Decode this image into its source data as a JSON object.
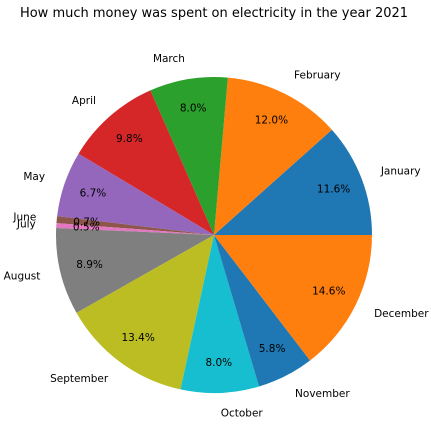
{
  "chart_data": {
    "type": "pie",
    "title": "How much money was spent on electricity in the year 2021",
    "categories": [
      "January",
      "February",
      "March",
      "April",
      "May",
      "June",
      "July",
      "August",
      "September",
      "October",
      "November",
      "December"
    ],
    "values": [
      11.6,
      12.0,
      8.0,
      9.8,
      6.7,
      0.7,
      0.5,
      8.9,
      13.4,
      8.0,
      5.8,
      14.6
    ],
    "percent_labels": [
      "11.6%",
      "12.0%",
      "8.0%",
      "9.8%",
      "6.7%",
      "0.7%",
      "0.5%",
      "8.9%",
      "13.4%",
      "8.0%",
      "5.8%",
      "14.6%"
    ],
    "colors": [
      "#1f77b4",
      "#ff7f0e",
      "#2ca02c",
      "#d62728",
      "#9467bd",
      "#8c564b",
      "#e377c2",
      "#7f7f7f",
      "#bcbd22",
      "#17becf",
      "#1f77b4",
      "#ff7f0e"
    ],
    "start_angle_deg": 0,
    "direction": "counterclockwise",
    "legend": "none"
  }
}
